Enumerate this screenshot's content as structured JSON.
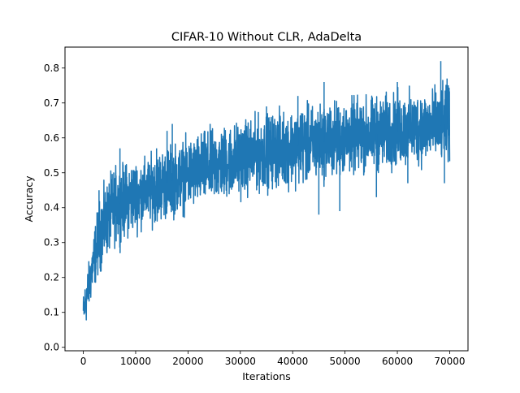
{
  "chart_data": {
    "type": "line",
    "title": "CIFAR-10 Without CLR, AdaDelta",
    "xlabel": "Iterations",
    "ylabel": "Accuracy",
    "xlim": [
      -3500,
      73500
    ],
    "ylim": [
      -0.01,
      0.86
    ],
    "xticks": [
      0,
      10000,
      20000,
      30000,
      40000,
      50000,
      60000,
      70000
    ],
    "yticks": [
      0.0,
      0.1,
      0.2,
      0.3,
      0.4,
      0.5,
      0.6,
      0.7,
      0.8
    ],
    "grid": false,
    "legend": null,
    "series": [
      {
        "color": "#1f77b4",
        "envelope": {
          "x": [
            0,
            500,
            1000,
            2000,
            3000,
            4000,
            5000,
            6000,
            8000,
            10000,
            12000,
            15000,
            20000,
            25000,
            30000,
            35000,
            40000,
            45000,
            50000,
            55000,
            60000,
            65000,
            70000
          ],
          "upper": [
            0.17,
            0.23,
            0.26,
            0.36,
            0.45,
            0.49,
            0.52,
            0.55,
            0.56,
            0.57,
            0.57,
            0.6,
            0.63,
            0.66,
            0.68,
            0.7,
            0.72,
            0.73,
            0.74,
            0.75,
            0.76,
            0.77,
            0.78
          ],
          "lower": [
            0.03,
            0.04,
            0.08,
            0.14,
            0.18,
            0.21,
            0.24,
            0.26,
            0.28,
            0.3,
            0.32,
            0.33,
            0.36,
            0.38,
            0.4,
            0.42,
            0.43,
            0.44,
            0.46,
            0.47,
            0.48,
            0.49,
            0.5
          ],
          "spikes": [
            [
              3000,
              0.45
            ],
            [
              7000,
              0.57
            ],
            [
              14000,
              0.57
            ],
            [
              16000,
              0.62
            ],
            [
              17000,
              0.64
            ],
            [
              35000,
              0.69
            ],
            [
              41000,
              0.72
            ],
            [
              46000,
              0.76
            ],
            [
              60000,
              0.76
            ],
            [
              68300,
              0.82
            ],
            [
              69500,
              0.77
            ],
            [
              45000,
              0.38
            ],
            [
              49000,
              0.39
            ],
            [
              56000,
              0.43
            ],
            [
              62000,
              0.47
            ],
            [
              69000,
              0.47
            ]
          ]
        }
      }
    ]
  }
}
